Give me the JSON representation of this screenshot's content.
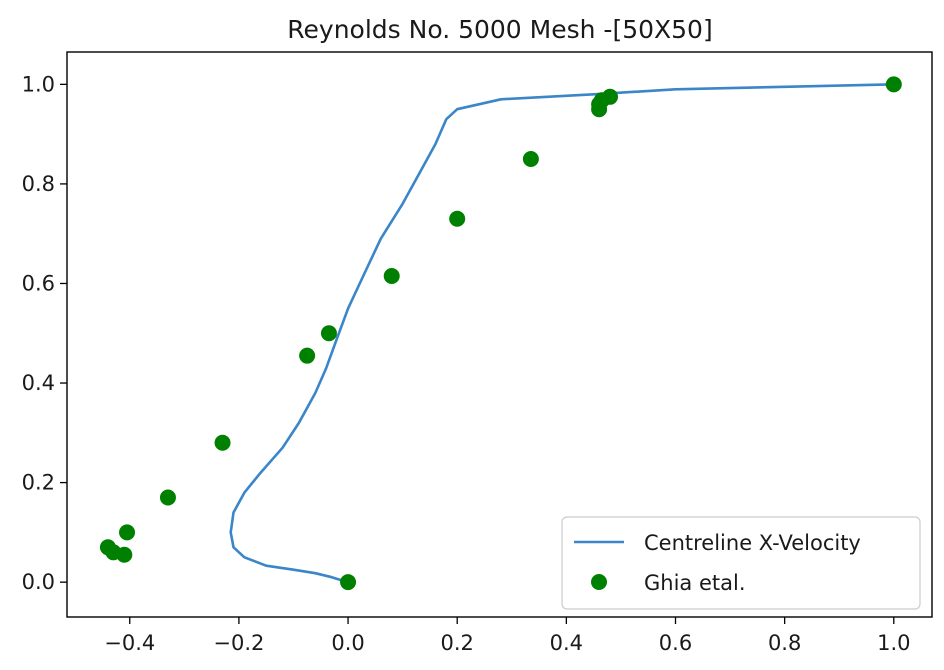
{
  "chart_data": {
    "type": "line",
    "title": "Reynolds No. 5000 Mesh -[50X50]",
    "xlabel": "",
    "ylabel": "",
    "xlim": [
      -0.515,
      1.07
    ],
    "ylim": [
      -0.07,
      1.065
    ],
    "x_ticks": [
      -0.4,
      -0.2,
      0.0,
      0.2,
      0.4,
      0.6,
      0.8,
      1.0
    ],
    "x_tick_labels": [
      "−0.4",
      "−0.2",
      "0.0",
      "0.2",
      "0.4",
      "0.6",
      "0.8",
      "1.0"
    ],
    "y_ticks": [
      0.0,
      0.2,
      0.4,
      0.6,
      0.8,
      1.0
    ],
    "y_tick_labels": [
      "0.0",
      "0.2",
      "0.4",
      "0.6",
      "0.8",
      "1.0"
    ],
    "grid": false,
    "legend_position": "lower-right",
    "series": [
      {
        "name": "Centreline X-Velocity",
        "kind": "line",
        "color": "#3a86c8",
        "x": [
          0.0,
          -0.03,
          -0.06,
          -0.1,
          -0.15,
          -0.19,
          -0.21,
          -0.215,
          -0.21,
          -0.19,
          -0.16,
          -0.12,
          -0.09,
          -0.06,
          -0.04,
          -0.02,
          0.0,
          0.03,
          0.06,
          0.1,
          0.13,
          0.16,
          0.18,
          0.2,
          0.28,
          0.45,
          0.6,
          0.8,
          1.0
        ],
        "y": [
          0.0,
          0.01,
          0.018,
          0.025,
          0.033,
          0.05,
          0.07,
          0.1,
          0.14,
          0.18,
          0.22,
          0.27,
          0.32,
          0.38,
          0.43,
          0.49,
          0.55,
          0.62,
          0.69,
          0.76,
          0.82,
          0.88,
          0.93,
          0.95,
          0.97,
          0.98,
          0.99,
          0.995,
          1.0
        ]
      },
      {
        "name": "Ghia etal.",
        "kind": "scatter",
        "color": "#008000",
        "x": [
          0.0,
          -0.41,
          -0.43,
          -0.44,
          -0.405,
          -0.33,
          -0.23,
          -0.075,
          -0.035,
          0.08,
          0.2,
          0.335,
          0.46,
          0.46,
          0.465,
          0.48,
          1.0
        ],
        "y": [
          0.0,
          0.055,
          0.06,
          0.07,
          0.1,
          0.17,
          0.28,
          0.455,
          0.5,
          0.615,
          0.73,
          0.85,
          0.95,
          0.96,
          0.968,
          0.975,
          1.0
        ]
      }
    ]
  }
}
